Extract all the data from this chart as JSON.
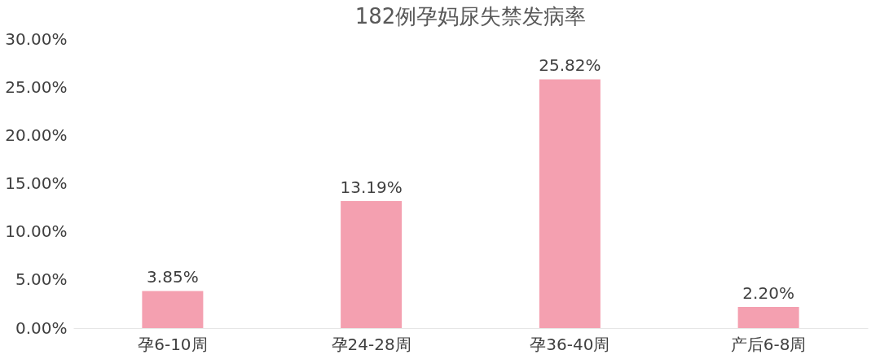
{
  "chart_data": {
    "type": "bar",
    "title": "182例孕妈尿失禁发病率",
    "categories": [
      "孕6-10周",
      "孕24-28周",
      "孕36-40周",
      "产后6-8周"
    ],
    "values": [
      3.85,
      13.19,
      25.82,
      2.2
    ],
    "value_labels": [
      "3.85%",
      "13.19%",
      "25.82%",
      "2.20%"
    ],
    "color": "#f4a0b0",
    "ylim": [
      0,
      30
    ],
    "yticks": [
      {
        "value": 0,
        "label": "0.00%"
      },
      {
        "value": 5,
        "label": "5.00%"
      },
      {
        "value": 10,
        "label": "10.00%"
      },
      {
        "value": 15,
        "label": "15.00%"
      },
      {
        "value": 20,
        "label": "20.00%"
      },
      {
        "value": 25,
        "label": "25.00%"
      },
      {
        "value": 30,
        "label": "30.00%"
      }
    ],
    "grid": false
  }
}
